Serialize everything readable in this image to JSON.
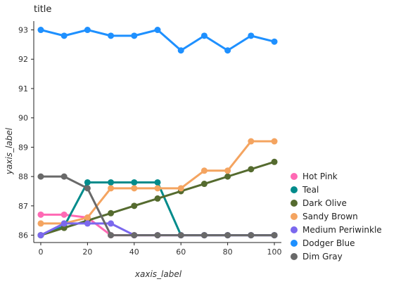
{
  "chart_data": {
    "type": "line",
    "title": "title",
    "xlabel": "xaxis_label",
    "ylabel": "yaxis_label",
    "xlim": [
      -3,
      103
    ],
    "ylim": [
      85.75,
      93.3
    ],
    "x_ticks": [
      "0",
      "20",
      "40",
      "60",
      "80",
      "100"
    ],
    "x_tick_values": [
      0,
      20,
      40,
      60,
      80,
      100
    ],
    "y_ticks": [
      "86",
      "87",
      "88",
      "89",
      "90",
      "91",
      "92",
      "93"
    ],
    "y_tick_values": [
      86,
      87,
      88,
      89,
      90,
      91,
      92,
      93
    ],
    "grid": false,
    "legend_position": "right",
    "series": [
      {
        "name": "Hot Pink",
        "color": "#FF69B4",
        "points": [
          [
            0,
            86.7
          ],
          [
            10,
            86.7
          ],
          [
            20,
            86.6
          ],
          [
            30,
            86.0
          ],
          [
            40,
            86.0
          ],
          [
            50,
            86.0
          ],
          [
            60,
            86.0
          ],
          [
            70,
            86.0
          ],
          [
            80,
            86.0
          ],
          [
            90,
            86.0
          ],
          [
            100,
            86.0
          ]
        ]
      },
      {
        "name": "Teal",
        "color": "#008B8B",
        "points": [
          [
            0,
            86.0
          ],
          [
            10,
            86.3
          ],
          [
            20,
            87.8
          ],
          [
            30,
            87.8
          ],
          [
            40,
            87.8
          ],
          [
            50,
            87.8
          ],
          [
            60,
            86.0
          ],
          [
            70,
            86.0
          ],
          [
            80,
            86.0
          ],
          [
            90,
            86.0
          ],
          [
            100,
            86.0
          ]
        ]
      },
      {
        "name": "Dark Olive",
        "color": "#556B2F",
        "points": [
          [
            0,
            86.0
          ],
          [
            10,
            86.25
          ],
          [
            20,
            86.5
          ],
          [
            30,
            86.75
          ],
          [
            40,
            87.0
          ],
          [
            50,
            87.25
          ],
          [
            60,
            87.5
          ],
          [
            70,
            87.75
          ],
          [
            80,
            88.0
          ],
          [
            90,
            88.25
          ],
          [
            100,
            88.5
          ]
        ]
      },
      {
        "name": "Sandy Brown",
        "color": "#F4A460",
        "points": [
          [
            0,
            86.4
          ],
          [
            10,
            86.4
          ],
          [
            20,
            86.6
          ],
          [
            30,
            87.6
          ],
          [
            40,
            87.6
          ],
          [
            50,
            87.6
          ],
          [
            60,
            87.6
          ],
          [
            70,
            88.2
          ],
          [
            80,
            88.2
          ],
          [
            90,
            89.2
          ],
          [
            100,
            89.2
          ]
        ]
      },
      {
        "name": "Medium Periwinkle",
        "color": "#7B68EE",
        "points": [
          [
            0,
            86.0
          ],
          [
            10,
            86.4
          ],
          [
            20,
            86.4
          ],
          [
            30,
            86.4
          ],
          [
            40,
            86.0
          ],
          [
            50,
            86.0
          ],
          [
            60,
            86.0
          ],
          [
            70,
            86.0
          ],
          [
            80,
            86.0
          ],
          [
            90,
            86.0
          ],
          [
            100,
            86.0
          ]
        ]
      },
      {
        "name": "Dodger Blue",
        "color": "#1E90FF",
        "points": [
          [
            0,
            93.0
          ],
          [
            10,
            92.8
          ],
          [
            20,
            93.0
          ],
          [
            30,
            92.8
          ],
          [
            40,
            92.8
          ],
          [
            50,
            93.0
          ],
          [
            60,
            92.3
          ],
          [
            70,
            92.8
          ],
          [
            80,
            92.3
          ],
          [
            90,
            92.8
          ],
          [
            100,
            92.6
          ]
        ]
      },
      {
        "name": "Dim Gray",
        "color": "#696969",
        "points": [
          [
            0,
            88.0
          ],
          [
            10,
            88.0
          ],
          [
            20,
            87.6
          ],
          [
            30,
            86.0
          ],
          [
            40,
            86.0
          ],
          [
            50,
            86.0
          ],
          [
            60,
            86.0
          ],
          [
            70,
            86.0
          ],
          [
            80,
            86.0
          ],
          [
            90,
            86.0
          ],
          [
            100,
            86.0
          ]
        ]
      }
    ]
  }
}
